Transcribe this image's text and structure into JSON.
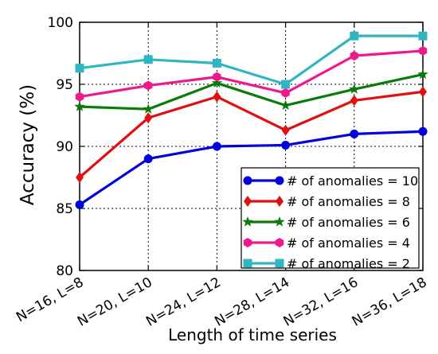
{
  "chart_data": {
    "type": "line",
    "xlabel": "Length of time series",
    "ylabel": "Accuracy (%)",
    "categories": [
      "N=16, L=8",
      "N=20, L=10",
      "N=24, L=12",
      "N=28, L=14",
      "N=32, L=16",
      "N=36, L=18"
    ],
    "ylim": [
      80,
      100
    ],
    "yticks": [
      80,
      85,
      90,
      95,
      100
    ],
    "grid": true,
    "legend_position": "bottom-right",
    "series": [
      {
        "name": "# of anomalies = 10",
        "color": "#0000dd",
        "marker": "circle",
        "values": [
          85.3,
          89.0,
          90.0,
          90.1,
          91.0,
          91.2
        ]
      },
      {
        "name": "# of anomalies = 8",
        "color": "#e01010",
        "marker": "diamond",
        "values": [
          87.5,
          92.3,
          94.0,
          91.3,
          93.7,
          94.4
        ]
      },
      {
        "name": "# of anomalies = 6",
        "color": "#0a7a0a",
        "marker": "star",
        "values": [
          93.2,
          93.0,
          95.1,
          93.3,
          94.6,
          95.8
        ]
      },
      {
        "name": "# of anomalies = 4",
        "color": "#ee1a8c",
        "marker": "hexagon",
        "values": [
          94.0,
          94.9,
          95.6,
          94.3,
          97.3,
          97.7
        ]
      },
      {
        "name": "# of anomalies = 2",
        "color": "#30b6c0",
        "marker": "square",
        "values": [
          96.3,
          97.0,
          96.7,
          95.0,
          98.9,
          98.9
        ]
      }
    ]
  }
}
